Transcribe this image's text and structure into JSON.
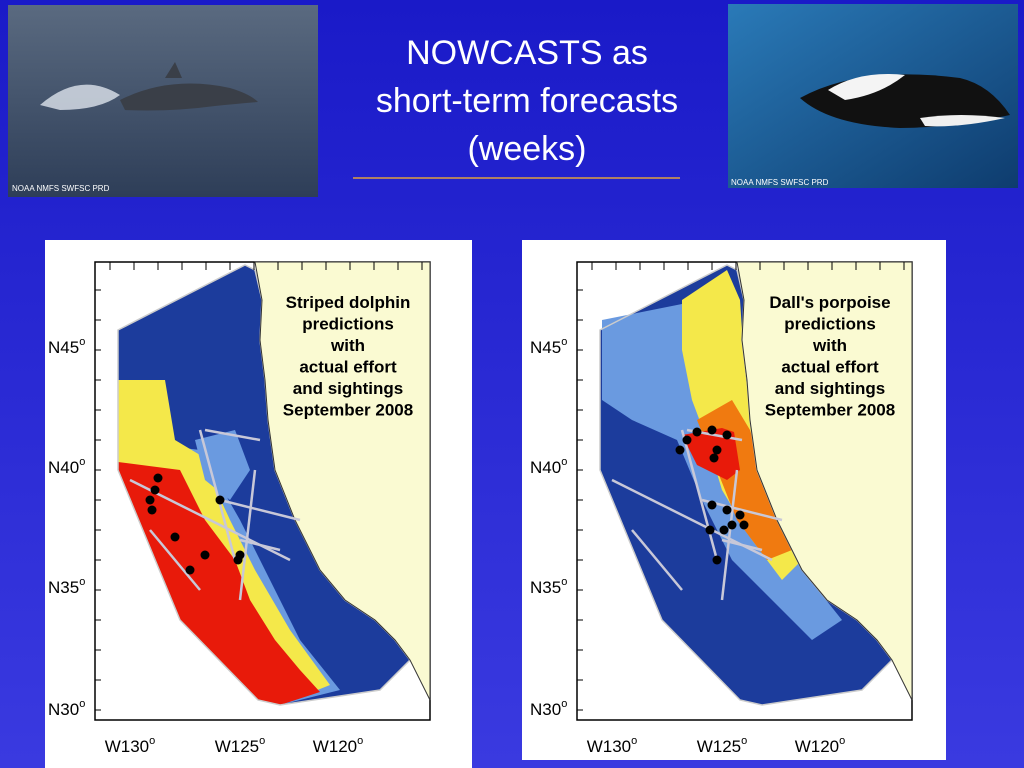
{
  "header": {
    "title_lines": [
      "NOWCASTS as",
      "short-term forecasts",
      "(weeks)"
    ]
  },
  "photos": [
    {
      "credit": "NOAA NMFS SWFSC PRD"
    },
    {
      "credit": "NOAA NMFS SWFSC PRD"
    }
  ],
  "maps": [
    {
      "caption_lines": [
        "Striped dolphin",
        "predictions",
        "with",
        "actual effort",
        "and sightings",
        "September 2008"
      ],
      "lat_labels": [
        {
          "text": "N45",
          "sup": "o"
        },
        {
          "text": "N40",
          "sup": "o"
        },
        {
          "text": "N35",
          "sup": "o"
        },
        {
          "text": "N30",
          "sup": "o"
        }
      ],
      "lon_labels": [
        {
          "text": "W130",
          "sup": "o"
        },
        {
          "text": "W125",
          "sup": "o"
        },
        {
          "text": "W120",
          "sup": "o"
        }
      ]
    },
    {
      "caption_lines": [
        "Dall's porpoise",
        "predictions",
        "with",
        "actual effort",
        "and sightings",
        "September 2008"
      ],
      "lat_labels": [
        {
          "text": "N45",
          "sup": "o"
        },
        {
          "text": "N40",
          "sup": "o"
        },
        {
          "text": "N35",
          "sup": "o"
        },
        {
          "text": "N30",
          "sup": "o"
        }
      ],
      "lon_labels": [
        {
          "text": "W130",
          "sup": "o"
        },
        {
          "text": "W125",
          "sup": "o"
        },
        {
          "text": "W120",
          "sup": "o"
        }
      ]
    }
  ]
}
